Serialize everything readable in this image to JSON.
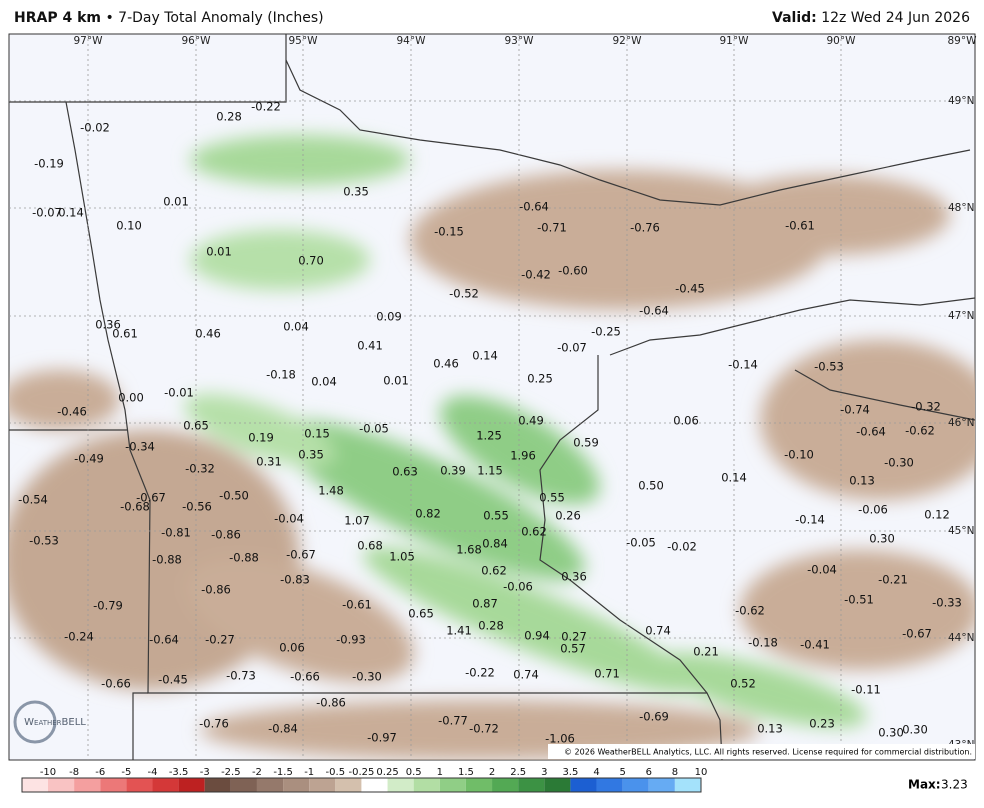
{
  "header": {
    "title": "HRAP 4 km",
    "separator": "•",
    "subtitle": "7-Day Total Anomaly (Inches)",
    "valid_label": "Valid:",
    "valid_time": "12z Wed 24 Jun 2026"
  },
  "map": {
    "lon_labels": [
      "97°W",
      "96°W",
      "95°W",
      "94°W",
      "93°W",
      "92°W",
      "91°W",
      "90°W",
      "89°W"
    ],
    "lat_labels": [
      "49°N",
      "48°N",
      "47°N",
      "46°N",
      "45°N",
      "44°N",
      "43°N"
    ],
    "anomaly_labels": [
      "-0.02",
      "0.28",
      "-0.22",
      "-0.19",
      "0.01",
      "0.35",
      "-0.07",
      "0.14",
      "0.10",
      "-0.64",
      "-0.71",
      "-0.76",
      "-0.61",
      "-0.15",
      "0.01",
      "0.70",
      "-0.42",
      "-0.60",
      "-0.52",
      "-0.45",
      "-0.64",
      "0.36",
      "0.61",
      "0.46",
      "0.04",
      "0.09",
      "-0.25",
      "0.41",
      "-0.07",
      "0.14",
      "0.46",
      "-0.14",
      "-0.53",
      "-0.18",
      "0.04",
      "0.01",
      "0.25",
      "-0.46",
      "0.00",
      "-0.01",
      "-0.74",
      "-0.32",
      "0.49",
      "0.06",
      "0.65",
      "0.19",
      "0.15",
      "-0.05",
      "1.25",
      "0.59",
      "-0.64",
      "-0.62",
      "-0.34",
      "-0.49",
      "1.96",
      "-0.10",
      "-0.30",
      "0.35",
      "0.31",
      "-0.32",
      "0.63",
      "0.39",
      "1.15",
      "0.14",
      "0.13",
      "0.50",
      "-0.54",
      "-0.67",
      "-0.68",
      "-0.50",
      "1.48",
      "0.55",
      "-0.56",
      "-0.06",
      "0.12",
      "-0.04",
      "1.07",
      "0.82",
      "0.55",
      "0.26",
      "-0.14",
      "-0.81",
      "-0.86",
      "0.62",
      "-0.53",
      "0.68",
      "0.84",
      "-0.05",
      "-0.02",
      "0.30",
      "-0.88",
      "-0.88",
      "-0.67",
      "1.05",
      "1.68",
      "0.62",
      "-0.04",
      "-0.83",
      "-0.06",
      "0.36",
      "-0.21",
      "-0.86",
      "-0.51",
      "-0.33",
      "-0.79",
      "-0.61",
      "0.87",
      "0.65",
      "-0.62",
      "0.28",
      "1.41",
      "0.74",
      "-0.24",
      "-0.64",
      "-0.27",
      "-0.93",
      "0.94",
      "0.27",
      "-0.67",
      "-0.18",
      "-0.41",
      "0.06",
      "0.57",
      "0.21",
      "-0.73",
      "-0.66",
      "-0.30",
      "-0.22",
      "0.74",
      "0.71",
      "-0.45",
      "-0.66",
      "0.52",
      "-0.11",
      "-0.86",
      "-0.76",
      "-0.84",
      "-0.77",
      "-0.72",
      "-0.69",
      "0.13",
      "0.23",
      "-0.97",
      "-1.06",
      "0.30",
      "0.30"
    ],
    "logo": "WeatherBELL",
    "copyright": "© 2026 WeatherBELL Analytics, LLC. All rights reserved. License required for commercial distribution."
  },
  "colorbar": {
    "labels": [
      "-10",
      "-8",
      "-6",
      "-5",
      "-4",
      "-3.5",
      "-3",
      "-2.5",
      "-2",
      "-1.5",
      "-1",
      "-0.5",
      "-0.25",
      "0.25",
      "0.5",
      "1",
      "1.5",
      "2",
      "2.5",
      "3",
      "3.5",
      "4",
      "5",
      "6",
      "8",
      "10"
    ],
    "colors": [
      "#fde3e3",
      "#f9c3c3",
      "#f49f9f",
      "#ec7878",
      "#e35353",
      "#d43838",
      "#bd2121",
      "#6b4c3f",
      "#7f6255",
      "#95796b",
      "#aa8f7f",
      "#bda392",
      "#d4c0ad",
      "#ffffff",
      "#d2ecc8",
      "#b2dea4",
      "#90ce86",
      "#70bd68",
      "#53a954",
      "#3c9244",
      "#2b7a36",
      "#1c5fd2",
      "#3178e2",
      "#4a92ec",
      "#66abf3",
      "#a4e2fb"
    ],
    "max_label": "Max:",
    "max_value": "3.23"
  }
}
